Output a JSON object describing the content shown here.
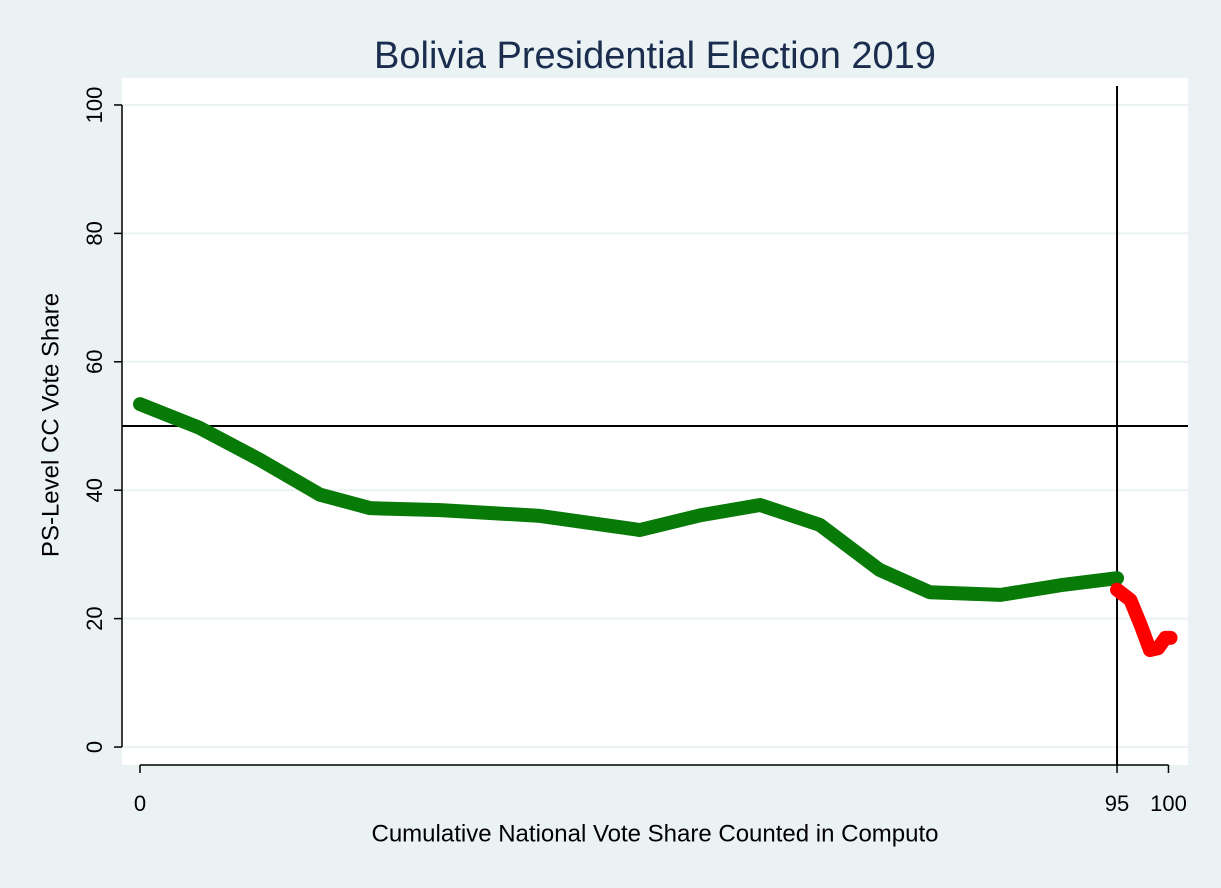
{
  "chart_data": {
    "type": "line",
    "title": "Bolivia Presidential Election 2019",
    "xlabel": "Cumulative National Vote Share Counted in Computo",
    "ylabel": "PS-Level CC Vote Share",
    "xlim": [
      -1.75,
      101.9
    ],
    "ylim": [
      -2.8,
      104.2
    ],
    "xticks": [
      0,
      95,
      100
    ],
    "yticks": [
      0,
      20,
      40,
      60,
      80,
      100
    ],
    "grid": true,
    "hline": 50,
    "vline": 95,
    "series": [
      {
        "color": "#087a08",
        "x": [
          0,
          5.8,
          11.7,
          17.5,
          22.4,
          29.2,
          38.9,
          48.6,
          54.5,
          60.3,
          66.1,
          71.9,
          76.8,
          83.7,
          89.5,
          95
        ],
        "values": [
          53.4,
          49.7,
          44.7,
          39.3,
          37.2,
          36.9,
          36.0,
          33.8,
          36.1,
          37.7,
          34.6,
          27.6,
          24.1,
          23.7,
          25.2,
          26.3
        ]
      },
      {
        "color": "#ff0000",
        "x": [
          95,
          96.3,
          97.3,
          98.2,
          99,
          99.7,
          100.2
        ],
        "values": [
          24.5,
          22.9,
          19.0,
          15.1,
          15.4,
          17.0,
          17.0
        ]
      }
    ]
  }
}
